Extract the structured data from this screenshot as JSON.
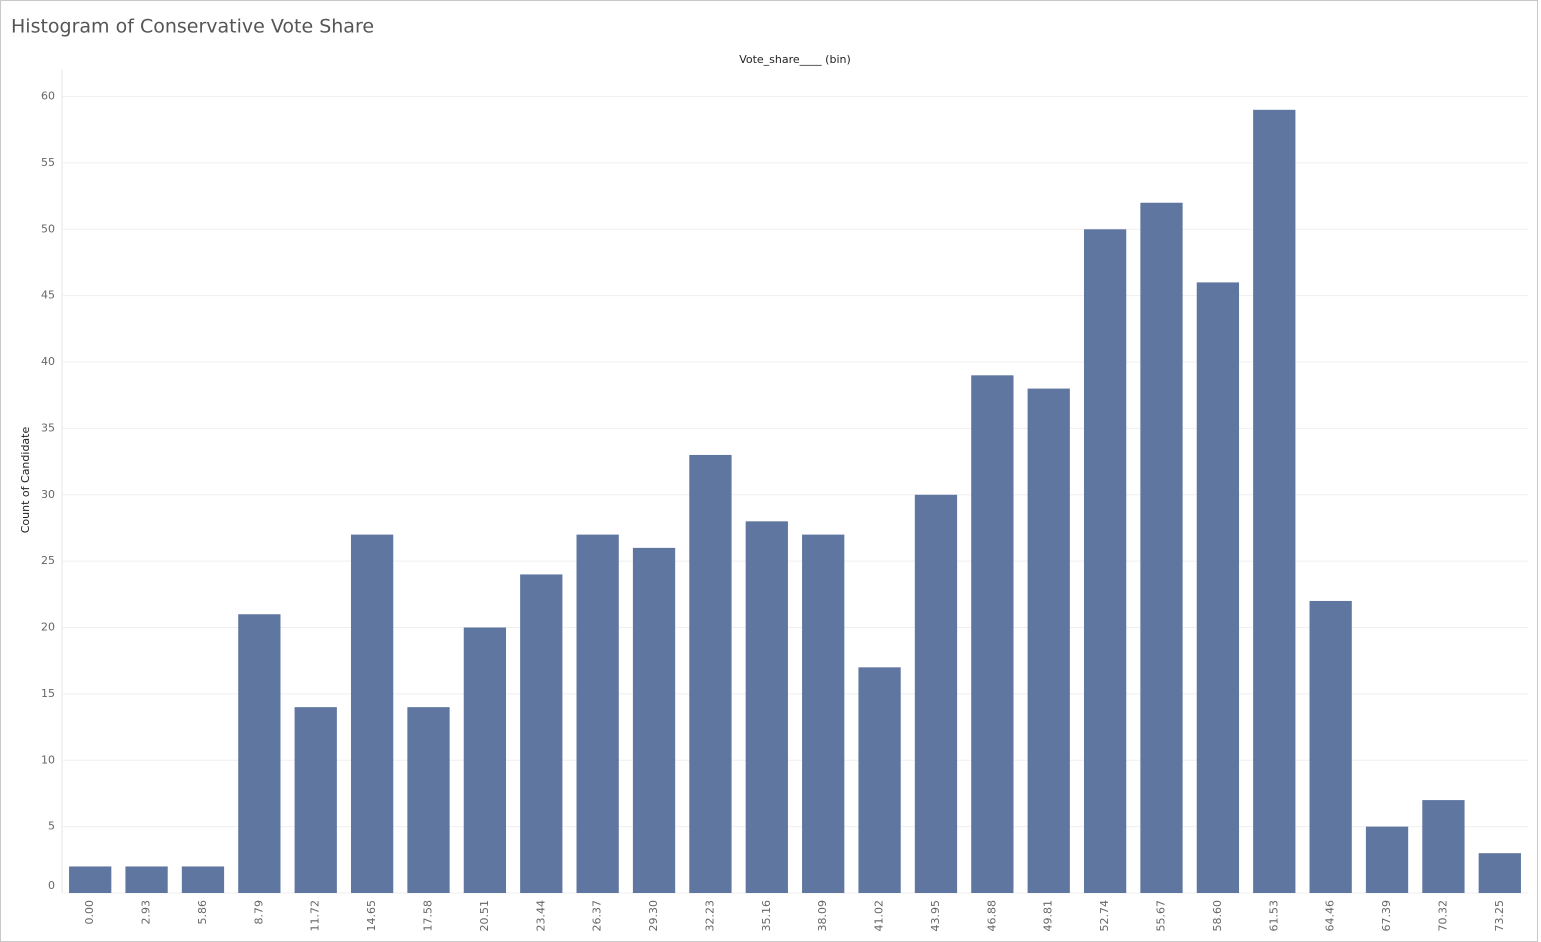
{
  "chart_data": {
    "type": "bar",
    "title": "Histogram of Conservative Vote Share",
    "x_label": "Vote_share____ (bin)",
    "y_label": "Count of Candidate",
    "categories": [
      "0.00",
      "2.93",
      "5.86",
      "8.79",
      "11.72",
      "14.65",
      "17.58",
      "20.51",
      "23.44",
      "26.37",
      "29.30",
      "32.23",
      "35.16",
      "38.09",
      "41.02",
      "43.95",
      "46.88",
      "49.81",
      "52.74",
      "55.67",
      "58.60",
      "61.53",
      "64.46",
      "67.39",
      "70.32",
      "73.25"
    ],
    "values": [
      2,
      2,
      2,
      21,
      14,
      27,
      14,
      20,
      24,
      27,
      26,
      33,
      28,
      27,
      17,
      30,
      39,
      38,
      50,
      52,
      46,
      59,
      22,
      5,
      7,
      3
    ],
    "color": "#5f77a0",
    "ylim": [
      0,
      62
    ],
    "yticks": [
      0,
      5,
      10,
      15,
      20,
      25,
      30,
      35,
      40,
      45,
      50,
      55,
      60
    ],
    "grid": true
  }
}
